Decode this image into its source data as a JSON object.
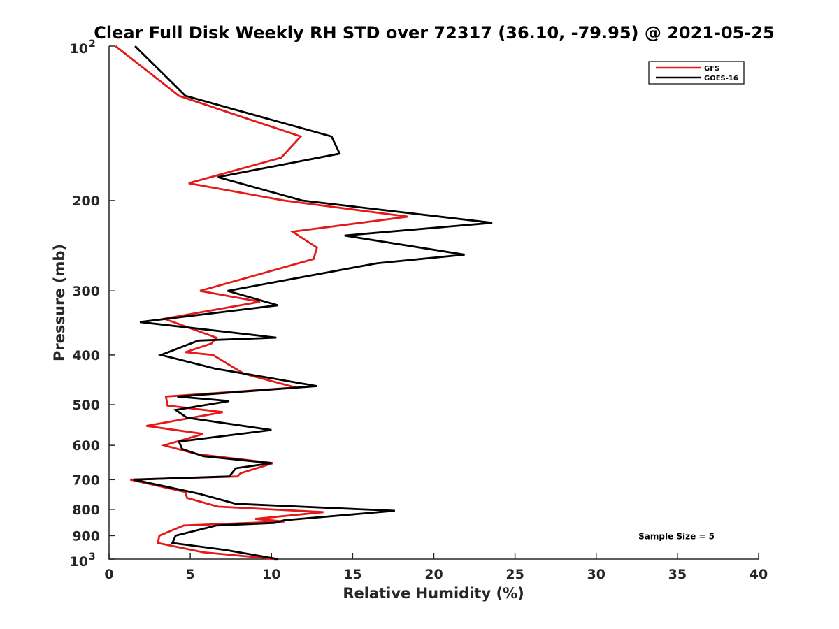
{
  "chart_data": {
    "type": "line",
    "title": "Clear Full Disk Weekly RH STD over 72317 (36.10, -79.95) @ 2021-05-25",
    "xlabel": "Relative Humidity (%)",
    "ylabel": "Pressure (mb)",
    "xlim": [
      0,
      40
    ],
    "ylim": [
      100,
      1000
    ],
    "yscale": "log",
    "y_reversed": true,
    "x_ticks": [
      0,
      5,
      10,
      15,
      20,
      25,
      30,
      35,
      40
    ],
    "y_ticks": [
      {
        "value": 100,
        "base": "10",
        "exp": "2"
      },
      {
        "value": 200,
        "label": "200"
      },
      {
        "value": 300,
        "label": "300"
      },
      {
        "value": 400,
        "label": "400"
      },
      {
        "value": 500,
        "label": "500"
      },
      {
        "value": 600,
        "label": "600"
      },
      {
        "value": 700,
        "label": "700"
      },
      {
        "value": 800,
        "label": "800"
      },
      {
        "value": 900,
        "label": "900"
      },
      {
        "value": 1000,
        "base": "10",
        "exp": "3"
      }
    ],
    "legend_position": "top-right",
    "grid": false,
    "series": [
      {
        "name": "GFS",
        "color": "#e41a1a",
        "points": [
          [
            0.4,
            100
          ],
          [
            4.3,
            125
          ],
          [
            11.8,
            150
          ],
          [
            10.6,
            165
          ],
          [
            4.9,
            185
          ],
          [
            10.8,
            200
          ],
          [
            18.4,
            215
          ],
          [
            11.3,
            230
          ],
          [
            12.8,
            247
          ],
          [
            12.6,
            260
          ],
          [
            5.6,
            300
          ],
          [
            9.3,
            315
          ],
          [
            3.4,
            340
          ],
          [
            6.6,
            370
          ],
          [
            6.3,
            380
          ],
          [
            4.7,
            395
          ],
          [
            6.4,
            400
          ],
          [
            8.3,
            435
          ],
          [
            11.5,
            463
          ],
          [
            3.5,
            482
          ],
          [
            3.6,
            502
          ],
          [
            7.0,
            517
          ],
          [
            2.3,
            550
          ],
          [
            5.8,
            570
          ],
          [
            3.4,
            600
          ],
          [
            5.5,
            625
          ],
          [
            10.1,
            650
          ],
          [
            8.1,
            680
          ],
          [
            7.9,
            690
          ],
          [
            1.3,
            700
          ],
          [
            4.7,
            740
          ],
          [
            4.8,
            760
          ],
          [
            6.7,
            790
          ],
          [
            13.2,
            810
          ],
          [
            9.0,
            835
          ],
          [
            10.8,
            845
          ],
          [
            4.6,
            860
          ],
          [
            3.1,
            900
          ],
          [
            3.0,
            930
          ],
          [
            5.8,
            970
          ],
          [
            10.3,
            1000
          ]
        ]
      },
      {
        "name": "GOES-16",
        "color": "#000000",
        "points": [
          [
            1.6,
            100
          ],
          [
            4.7,
            125
          ],
          [
            13.7,
            150
          ],
          [
            14.2,
            162
          ],
          [
            6.7,
            180
          ],
          [
            11.9,
            200
          ],
          [
            23.6,
            221
          ],
          [
            14.5,
            234
          ],
          [
            21.9,
            255
          ],
          [
            16.5,
            265
          ],
          [
            7.3,
            300
          ],
          [
            10.4,
            320
          ],
          [
            1.9,
            345
          ],
          [
            10.3,
            370
          ],
          [
            5.5,
            375
          ],
          [
            3.2,
            400
          ],
          [
            6.5,
            425
          ],
          [
            12.8,
            460
          ],
          [
            4.2,
            482
          ],
          [
            7.4,
            492
          ],
          [
            4.1,
            512
          ],
          [
            4.8,
            530
          ],
          [
            10.0,
            560
          ],
          [
            4.3,
            590
          ],
          [
            4.5,
            610
          ],
          [
            5.8,
            630
          ],
          [
            10.0,
            650
          ],
          [
            7.8,
            665
          ],
          [
            7.4,
            690
          ],
          [
            1.5,
            700
          ],
          [
            5.5,
            745
          ],
          [
            6.5,
            760
          ],
          [
            7.8,
            780
          ],
          [
            17.6,
            805
          ],
          [
            10.8,
            840
          ],
          [
            10.2,
            850
          ],
          [
            6.6,
            860
          ],
          [
            4.1,
            900
          ],
          [
            3.9,
            930
          ],
          [
            7.2,
            960
          ],
          [
            10.4,
            1000
          ]
        ]
      }
    ],
    "annotations": [
      {
        "text": "Sample Size = 5",
        "x": 32.6,
        "y": 900
      }
    ]
  }
}
